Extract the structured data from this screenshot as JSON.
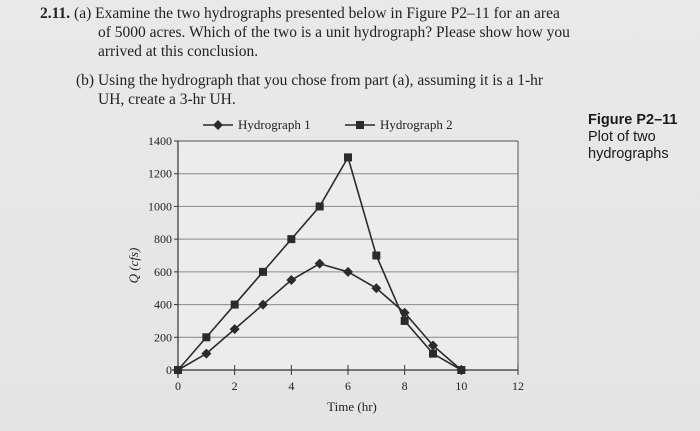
{
  "problem": {
    "number": "2.11.",
    "part_a_line1": "(a) Examine the two hydrographs presented below in Figure P2–11 for an area",
    "part_a_line2": "of 5000 acres. Which of the two is a unit hydrograph? Please show how you",
    "part_a_line3": "arrived at this conclusion.",
    "part_b_line1": "(b) Using the hydrograph that you chose from part (a), assuming it is a 1-hr",
    "part_b_line2": "UH, create a 3-hr UH."
  },
  "figure": {
    "label": "Figure P2–11",
    "caption_line1": "Plot of two",
    "caption_line2": "hydrographs"
  },
  "chart_data": {
    "type": "line",
    "xlabel": "Time (hr)",
    "ylabel": "Q (cfs)",
    "xlim": [
      0,
      12
    ],
    "ylim": [
      0,
      1400
    ],
    "xticks": [
      0,
      2,
      4,
      6,
      8,
      10,
      12
    ],
    "yticks": [
      0,
      200,
      400,
      600,
      800,
      1000,
      1200,
      1400
    ],
    "grid": "horizontal",
    "legend": "top",
    "series": [
      {
        "name": "Hydrograph 1",
        "marker": "diamond",
        "x": [
          0,
          1,
          2,
          3,
          4,
          5,
          6,
          7,
          8,
          9,
          10
        ],
        "values": [
          0,
          100,
          250,
          400,
          550,
          650,
          600,
          500,
          350,
          150,
          0
        ]
      },
      {
        "name": "Hydrograph 2",
        "marker": "square",
        "x": [
          0,
          1,
          2,
          3,
          4,
          5,
          6,
          7,
          8,
          9,
          10
        ],
        "values": [
          0,
          200,
          400,
          600,
          800,
          1000,
          1300,
          700,
          300,
          100,
          0
        ]
      }
    ],
    "colors": {
      "line": "#2b2b2b",
      "grid": "#8a8a8a",
      "plot_bg": "#ececea"
    }
  }
}
